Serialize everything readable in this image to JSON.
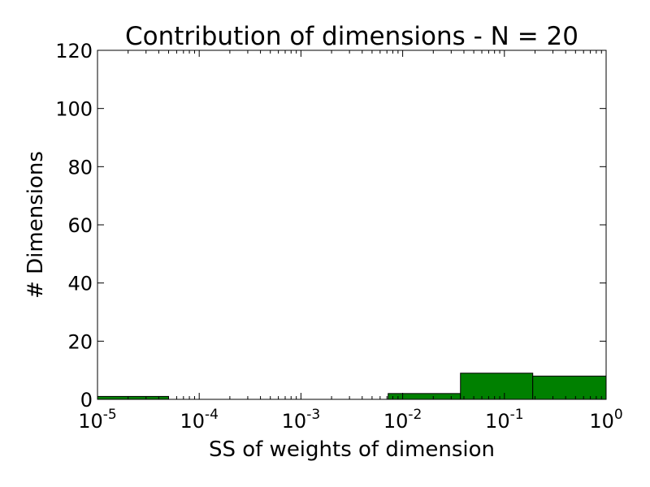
{
  "chart_data": {
    "type": "bar",
    "title": "Contribution of dimensions - N = 20",
    "xlabel": "SS of weights of dimension",
    "ylabel": "# Dimensions",
    "x_scale": "log",
    "xlim": [
      1e-05,
      1
    ],
    "ylim": [
      0,
      120
    ],
    "x_ticks": [
      {
        "value": 1e-05,
        "base": "10",
        "exp": "-5"
      },
      {
        "value": 0.0001,
        "base": "10",
        "exp": "-4"
      },
      {
        "value": 0.001,
        "base": "10",
        "exp": "-3"
      },
      {
        "value": 0.01,
        "base": "10",
        "exp": "-2"
      },
      {
        "value": 0.1,
        "base": "10",
        "exp": "-1"
      },
      {
        "value": 1,
        "base": "10",
        "exp": "0"
      }
    ],
    "y_ticks": [
      0,
      20,
      40,
      60,
      80,
      100,
      120
    ],
    "bar_color": "#008000",
    "bins": [
      {
        "x0": 1e-05,
        "x1": 5e-05,
        "count": 1
      },
      {
        "x0": 0.0072,
        "x1": 0.037,
        "count": 2
      },
      {
        "x0": 0.037,
        "x1": 0.19,
        "count": 9
      },
      {
        "x0": 0.19,
        "x1": 1,
        "count": 8
      }
    ],
    "grid": false,
    "legend": "none"
  }
}
